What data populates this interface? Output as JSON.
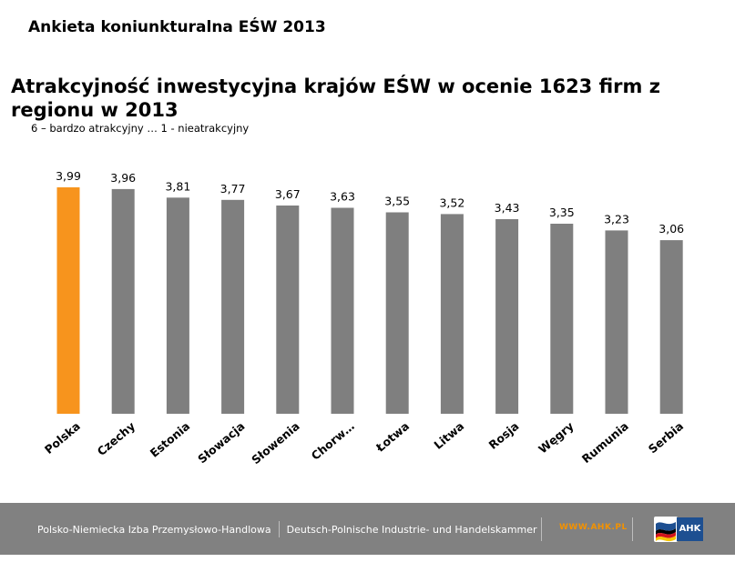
{
  "header": {
    "title": "Ankieta koniunkturalna EŚW 2013"
  },
  "colors": {
    "highlight": "#f7941d",
    "bar": "#7f7f7f",
    "footer_bg": "#818181",
    "footer_url": "#f39200"
  },
  "chart_data": {
    "type": "bar",
    "title": "Atrakcyjność inwestycyjna krajów EŚW w ocenie 1623 firm z regionu w 2013",
    "subtitle": "6 – bardzo atrakcyjny … 1 - nieatrakcyjny",
    "categories": [
      "Polska",
      "Czechy",
      "Estonia",
      "Słowacja",
      "Słowenia",
      "Chorw…",
      "Łotwa",
      "Litwa",
      "Rosja",
      "Węgry",
      "Rumunia",
      "Serbia"
    ],
    "values": [
      3.99,
      3.96,
      3.81,
      3.77,
      3.67,
      3.63,
      3.55,
      3.52,
      3.43,
      3.35,
      3.23,
      3.06
    ],
    "value_labels": [
      "3,99",
      "3,96",
      "3,81",
      "3,77",
      "3,67",
      "3,63",
      "3,55",
      "3,52",
      "3,43",
      "3,35",
      "3,23",
      "3,06"
    ],
    "highlight_index": 0,
    "xlabel": "",
    "ylabel": "",
    "grid": false,
    "legend": "none"
  },
  "footer": {
    "left_text": "Polsko-Niemiecka Izba Przemysłowo-Handlowa",
    "right_text": "Deutsch-Polnische Industrie- und Handelskammer",
    "url": "WWW.AHK.PL",
    "logo_text": "AHK",
    "logo_icon": "ahk-flag-logo-icon"
  }
}
